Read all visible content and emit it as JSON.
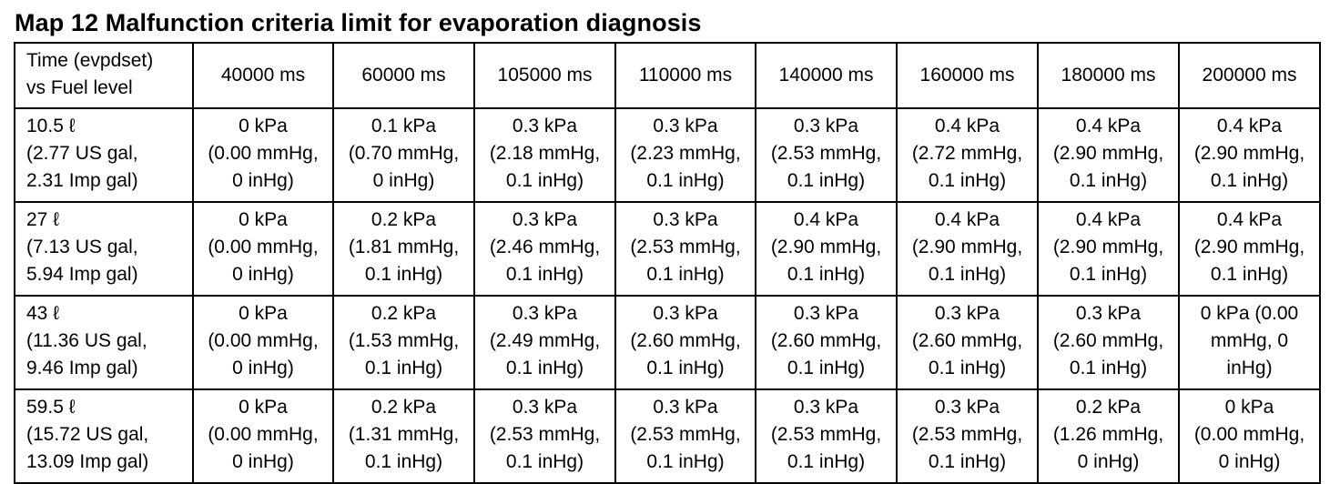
{
  "title": "Map 12 Malfunction criteria limit for evaporation diagnosis",
  "header": {
    "corner": [
      "Time (evpdset)",
      "vs Fuel level"
    ],
    "columns": [
      "40000 ms",
      "60000 ms",
      "105000 ms",
      "110000 ms",
      "140000 ms",
      "160000 ms",
      "180000 ms",
      "200000 ms"
    ]
  },
  "rows": [
    {
      "label": [
        "10.5 ℓ",
        "(2.77 US gal,",
        "2.31 Imp gal)"
      ],
      "cells": [
        [
          "0 kPa",
          "(0.00 mmHg,",
          "0 inHg)"
        ],
        [
          "0.1 kPa",
          "(0.70 mmHg,",
          "0 inHg)"
        ],
        [
          "0.3 kPa",
          "(2.18 mmHg,",
          "0.1 inHg)"
        ],
        [
          "0.3 kPa",
          "(2.23 mmHg,",
          "0.1 inHg)"
        ],
        [
          "0.3 kPa",
          "(2.53 mmHg,",
          "0.1 inHg)"
        ],
        [
          "0.4 kPa",
          "(2.72 mmHg,",
          "0.1 inHg)"
        ],
        [
          "0.4 kPa",
          "(2.90 mmHg,",
          "0.1 inHg)"
        ],
        [
          "0.4 kPa",
          "(2.90 mmHg,",
          "0.1 inHg)"
        ]
      ]
    },
    {
      "label": [
        "27 ℓ",
        "(7.13 US gal,",
        "5.94 Imp gal)"
      ],
      "cells": [
        [
          "0 kPa",
          "(0.00 mmHg,",
          "0 inHg)"
        ],
        [
          "0.2 kPa",
          "(1.81 mmHg,",
          "0.1 inHg)"
        ],
        [
          "0.3 kPa",
          "(2.46 mmHg,",
          "0.1 inHg)"
        ],
        [
          "0.3 kPa",
          "(2.53 mmHg,",
          "0.1 inHg)"
        ],
        [
          "0.4 kPa",
          "(2.90 mmHg,",
          "0.1 inHg)"
        ],
        [
          "0.4 kPa",
          "(2.90 mmHg,",
          "0.1 inHg)"
        ],
        [
          "0.4 kPa",
          "(2.90 mmHg,",
          "0.1 inHg)"
        ],
        [
          "0.4 kPa",
          "(2.90 mmHg,",
          "0.1 inHg)"
        ]
      ]
    },
    {
      "label": [
        "43 ℓ",
        "(11.36 US gal,",
        "9.46 Imp gal)"
      ],
      "cells": [
        [
          "0 kPa",
          "(0.00 mmHg,",
          "0 inHg)"
        ],
        [
          "0.2 kPa",
          "(1.53 mmHg,",
          "0.1 inHg)"
        ],
        [
          "0.3 kPa",
          "(2.49 mmHg,",
          "0.1 inHg)"
        ],
        [
          "0.3 kPa",
          "(2.60 mmHg,",
          "0.1 inHg)"
        ],
        [
          "0.3 kPa",
          "(2.60 mmHg,",
          "0.1 inHg)"
        ],
        [
          "0.3 kPa",
          "(2.60 mmHg,",
          "0.1 inHg)"
        ],
        [
          "0.3 kPa",
          "(2.60 mmHg,",
          "0.1 inHg)"
        ],
        [
          "0 kPa (0.00",
          "mmHg, 0",
          "inHg)"
        ]
      ]
    },
    {
      "label": [
        "59.5 ℓ",
        "(15.72 US gal,",
        "13.09 Imp gal)"
      ],
      "cells": [
        [
          "0 kPa",
          "(0.00 mmHg,",
          "0 inHg)"
        ],
        [
          "0.2 kPa",
          "(1.31 mmHg,",
          "0.1 inHg)"
        ],
        [
          "0.3 kPa",
          "(2.53 mmHg,",
          "0.1 inHg)"
        ],
        [
          "0.3 kPa",
          "(2.53 mmHg,",
          "0.1 inHg)"
        ],
        [
          "0.3 kPa",
          "(2.53 mmHg,",
          "0.1 inHg)"
        ],
        [
          "0.3 kPa",
          "(2.53 mmHg,",
          "0.1 inHg)"
        ],
        [
          "0.2 kPa",
          "(1.26 mmHg,",
          "0 inHg)"
        ],
        [
          "0 kPa",
          "(0.00 mmHg,",
          "0 inHg)"
        ]
      ]
    }
  ]
}
